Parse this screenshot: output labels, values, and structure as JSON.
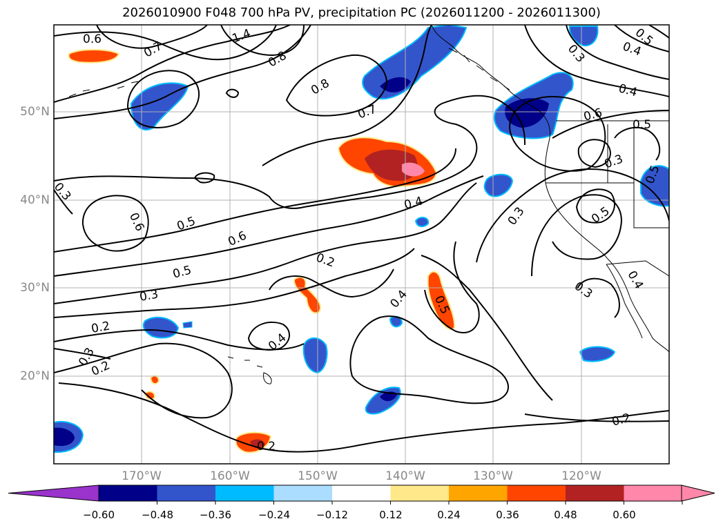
{
  "title": "2026010900 F048 700 hPa PV, precipitation PC (2026011200 - 2026011300)",
  "map": {
    "lon_range": [
      -180,
      -110
    ],
    "lat_range": [
      10,
      60
    ],
    "lat_ticks": [
      "50°N",
      "40°N",
      "30°N",
      "20°N"
    ],
    "lon_ticks": [
      "170°W",
      "160°W",
      "150°W",
      "140°W",
      "130°W",
      "120°W"
    ],
    "contour_labels": [
      "0.6",
      "0.7",
      "1.4",
      "0.8",
      "0.8",
      "0.7",
      "0.5",
      "0.4",
      "0.3",
      "0.4",
      "0.6",
      "0.5",
      "0.3",
      "0.5",
      "0.5",
      "0.6",
      "0.5",
      "0.6",
      "0.5",
      "0.3",
      "0.4",
      "0.3",
      "0.2",
      "0.4",
      "0.4",
      "0.5",
      "0.2",
      "0.3",
      "0.2",
      "0.3",
      "0.4",
      "0.2",
      "0.2",
      "0.3"
    ]
  },
  "colorbar": {
    "tick_labels": [
      "−0.60",
      "−0.48",
      "−0.36",
      "−0.24",
      "−0.12",
      "0.12",
      "0.24",
      "0.36",
      "0.48",
      "0.60"
    ],
    "colors": [
      "#9933cc",
      "#000088",
      "#3355cc",
      "#00bbff",
      "#aaddff",
      "#ffffff",
      "#ffe88a",
      "#ffa500",
      "#ff4500",
      "#b22222",
      "#ff88aa",
      "#ff88aa"
    ]
  }
}
